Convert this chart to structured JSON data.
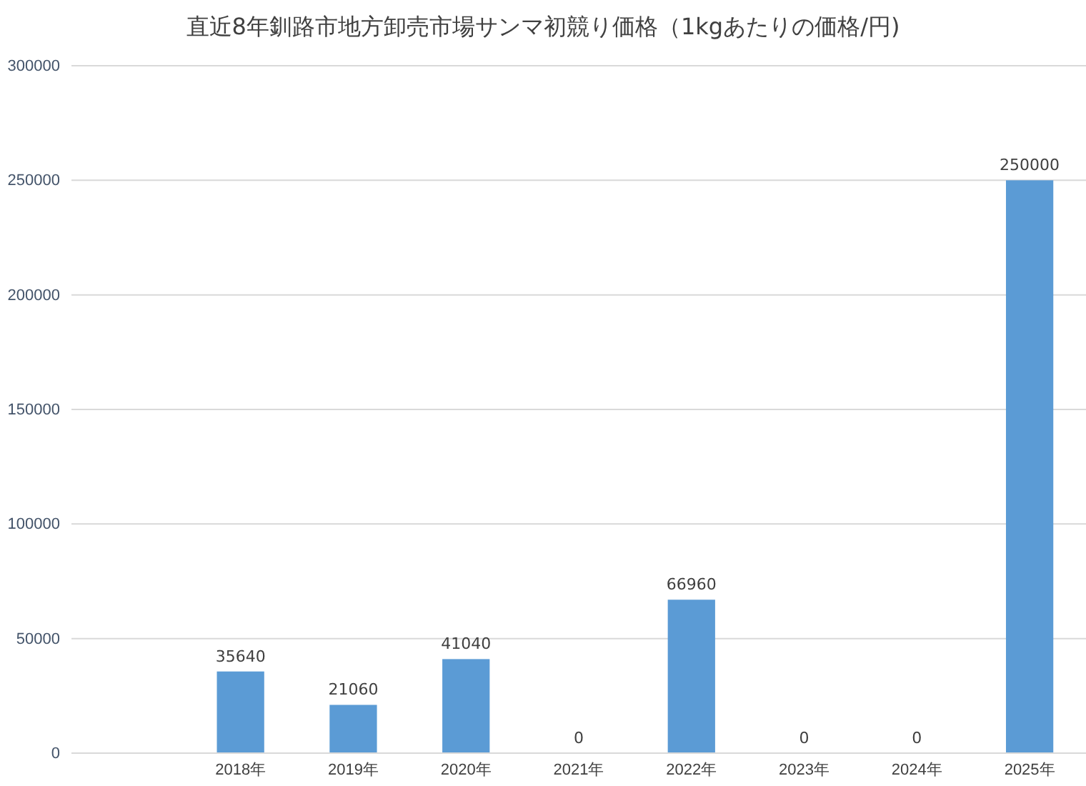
{
  "chart_data": {
    "type": "bar",
    "title": "直近8年釧路市地方卸売市場サンマ初競り価格（1kgあたりの価格/円)",
    "categories": [
      null,
      "2018年",
      "2019年",
      "2020年",
      "2021年",
      "2022年",
      "2023年",
      "2024年",
      "2025年"
    ],
    "values": [
      null,
      35640,
      21060,
      41040,
      0,
      66960,
      0,
      0,
      250000
    ],
    "color": "#5b9bd5",
    "ylim": [
      0,
      300000
    ],
    "yticks": [
      0,
      50000,
      100000,
      150000,
      200000,
      250000,
      300000
    ],
    "grid": "y",
    "data_labels": true,
    "legend": false
  }
}
